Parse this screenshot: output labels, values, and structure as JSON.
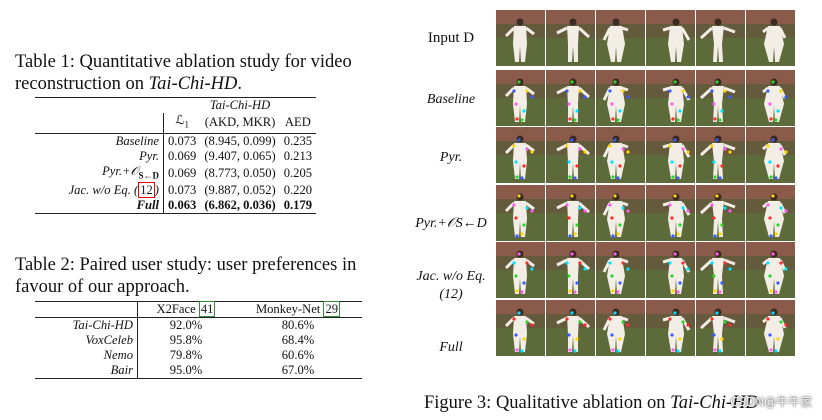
{
  "table1": {
    "caption_prefix": "Table 1: Quantitative ablation study for video reconstruction on ",
    "caption_italic": "Tai-Chi-HD",
    "caption_suffix": ".",
    "header_group": "Tai-Chi-HD",
    "col_l1": "ℒ",
    "col_l1_sub": "1",
    "col_akd": "(AKD, MKR)",
    "col_aed": "AED",
    "rows": [
      {
        "name": "Baseline",
        "l1": "0.073",
        "akd": "(8.945, 0.099)",
        "aed": "0.235"
      },
      {
        "name": "Pyr.",
        "l1": "0.069",
        "akd": "(9.407, 0.065)",
        "aed": "0.213"
      },
      {
        "name": "Pyr.+𝒪",
        "name_sub": "S←D",
        "l1": "0.069",
        "akd": "(8.773, 0.050)",
        "aed": "0.205"
      },
      {
        "name": "Jac. w/o Eq. (",
        "ref": "12",
        "name_end": ")",
        "l1": "0.073",
        "akd": "(9.887, 0.052)",
        "aed": "0.220"
      },
      {
        "name": "Full",
        "l1": "0.063",
        "akd": "(6.862, 0.036)",
        "aed": "0.179"
      }
    ]
  },
  "table2": {
    "caption": "Table 2: Paired user study: user preferences in favour of our approach.",
    "col1": "X2Face",
    "col1_ref": "41",
    "col2": "Monkey-Net",
    "col2_ref": "29",
    "rows": [
      {
        "name": "Tai-Chi-HD",
        "v1": "92.0%",
        "v2": "80.6%"
      },
      {
        "name": "VoxCeleb",
        "v1": "95.8%",
        "v2": "68.4%"
      },
      {
        "name": "Nemo",
        "v1": "79.8%",
        "v2": "60.6%"
      },
      {
        "name": "Bair",
        "v1": "95.0%",
        "v2": "67.0%"
      }
    ]
  },
  "figure": {
    "row_labels": [
      {
        "text": "Input D"
      },
      {
        "text": "Baseline"
      },
      {
        "text": "Pyr."
      },
      {
        "text": "Pyr.+𝒪S←D"
      },
      {
        "text": "Jac. w/o Eq. (12)"
      },
      {
        "text": "Full"
      }
    ],
    "caption_prefix": "Figure 3: Qualitative ablation on ",
    "caption_italic": "Tai-Chi-HD",
    "watermark": "CSDN@牛牛家"
  },
  "colors": {
    "ref_box": "#e00000",
    "grass": "#5d6b3a",
    "wall": "#8a5a4a",
    "figure": "#f2eee6",
    "keypoints": [
      "#ff2b2b",
      "#2bd62b",
      "#3a5bff",
      "#ffd400",
      "#ff5cf0",
      "#00e5ff"
    ]
  }
}
